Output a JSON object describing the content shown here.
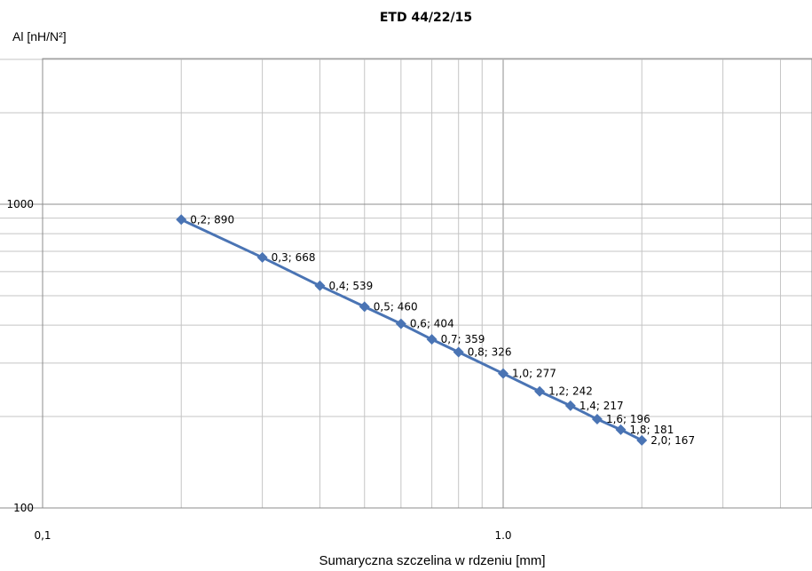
{
  "chart_data": {
    "type": "line",
    "title": "ETD 44/22/15",
    "ylabel": "Al [nH/N²]",
    "xlabel": "Sumaryczna szczelina w rdzeniu [mm]",
    "x_scale": "log",
    "y_scale": "log",
    "xlim": [
      0.1,
      3.5
    ],
    "ylim": [
      100,
      2500
    ],
    "grid": true,
    "x_ticks": [
      {
        "value": 0.1,
        "label": "0,1"
      },
      {
        "value": 1.0,
        "label": "1.0"
      }
    ],
    "y_ticks": [
      {
        "value": 100,
        "label": "100"
      },
      {
        "value": 1000,
        "label": "1000"
      }
    ],
    "series": [
      {
        "color": "#4a74b4",
        "marker": "diamond",
        "x": [
          0.2,
          0.3,
          0.4,
          0.5,
          0.6,
          0.7,
          0.8,
          1.0,
          1.2,
          1.4,
          1.6,
          1.8,
          2.0
        ],
        "y": [
          890,
          668,
          539,
          460,
          404,
          359,
          326,
          277,
          242,
          217,
          196,
          181,
          167
        ],
        "labels": [
          "0,2; 890",
          "0,3; 668",
          "0,4; 539",
          "0,5; 460",
          "0,6; 404",
          "0,7; 359",
          "0,8; 326",
          "1,0; 277",
          "1,2; 242",
          "1,4; 217",
          "1,6; 196",
          "1,8; 181",
          "2,0; 167"
        ]
      }
    ]
  }
}
